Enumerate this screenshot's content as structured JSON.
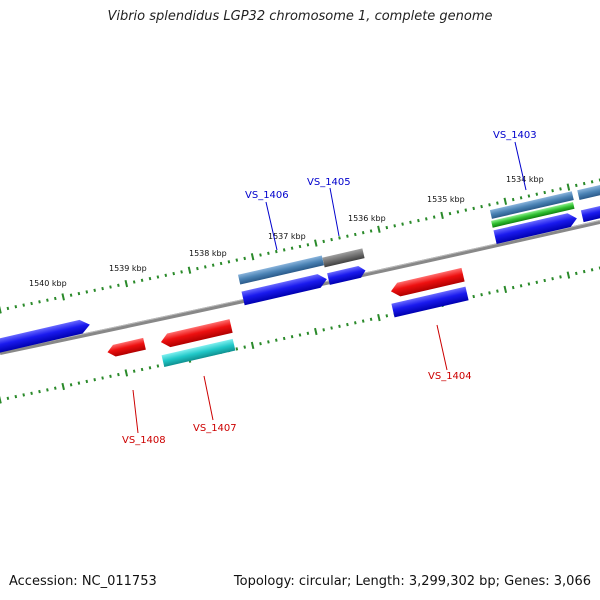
{
  "title": "Vibrio splendidus LGP32 chromosome 1, complete genome",
  "footer": {
    "accession": "Accession: NC_011753",
    "stats": "Topology: circular; Length: 3,299,302 bp; Genes: 3,066"
  },
  "ruler_labels": [
    "1540 kbp",
    "1539 kbp",
    "1538 kbp",
    "1537 kbp",
    "1536 kbp",
    "1535 kbp",
    "1534 kbp"
  ],
  "gene_labels": {
    "vs1403": "VS_1403",
    "vs1404": "VS_1404",
    "vs1405": "VS_1405",
    "vs1406": "VS_1406",
    "vs1407": "VS_1407",
    "vs1408": "VS_1408"
  },
  "colors": {
    "forward_label": "#0000cc",
    "reverse_label": "#cc0000",
    "cds_blue": "#1010ee",
    "cds_red": "#ee1010",
    "steel": "#4a82b4",
    "cyan": "#20c8c8",
    "green": "#30c030",
    "gray": "#707070",
    "backbone": "#808080",
    "tick": "#2a8a2a"
  }
}
